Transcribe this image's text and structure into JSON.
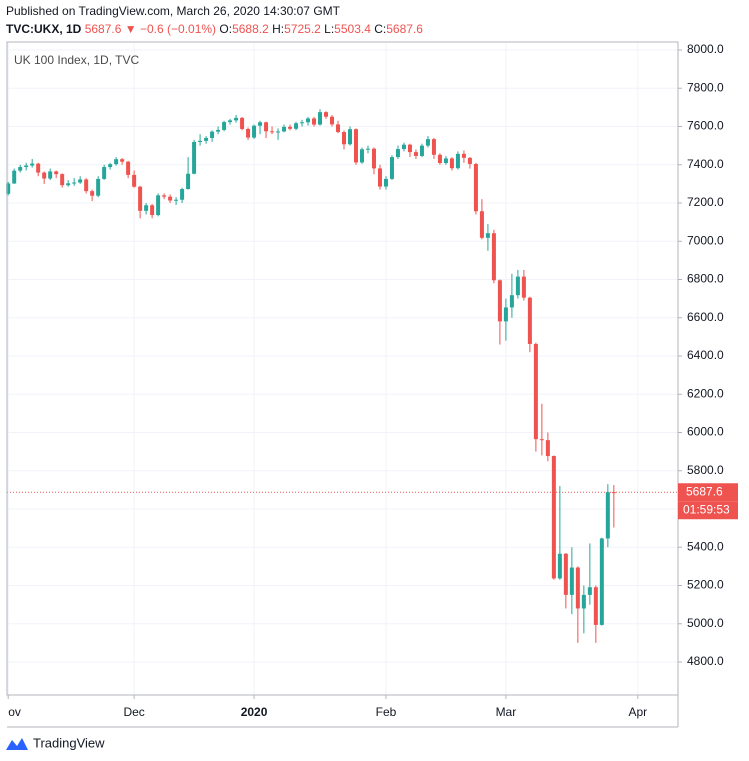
{
  "header": {
    "published": "Published on TradingView.com, March 26, 2020 14:30:07 GMT",
    "symbol": "TVC:UKX, 1D",
    "change_arrow": "▼",
    "change": {
      "value": -0.6,
      "label": "−0.6"
    },
    "change_pct": {
      "value": -0.01,
      "label": "(−0.01%)"
    },
    "ohlc_labels": [
      "O:",
      "H:",
      "L:",
      "C:"
    ]
  },
  "chart_data": {
    "type": "candlestick",
    "title": "UK 100 Index, 1D, TVC",
    "up_color": "#26a69a",
    "down_color": "#ef5350",
    "grid": true,
    "countdown": "01:59:53",
    "ylim": [
      4627.5,
      8041.8
    ],
    "yticks": [
      {
        "value": 4800,
        "label": "4800.0"
      },
      {
        "value": 5000,
        "label": "5000.0"
      },
      {
        "value": 5200,
        "label": "5200.0"
      },
      {
        "value": 5400,
        "label": "5400.0"
      },
      {
        "value": 5600,
        "label": "5600.0"
      },
      {
        "value": 5800,
        "label": "5800.0"
      },
      {
        "value": 6000,
        "label": "6000.0"
      },
      {
        "value": 6200,
        "label": "6200.0"
      },
      {
        "value": 6400,
        "label": "6400.0"
      },
      {
        "value": 6600,
        "label": "6600.0"
      },
      {
        "value": 6800,
        "label": "6800.0"
      },
      {
        "value": 7000,
        "label": "7000.0"
      },
      {
        "value": 7200,
        "label": "7200.0"
      },
      {
        "value": 7400,
        "label": "7400.0"
      },
      {
        "value": 7600,
        "label": "7600.0"
      },
      {
        "value": 7800,
        "label": "7800.0"
      },
      {
        "value": 8000,
        "label": "8000.0"
      }
    ],
    "xlim": [
      -0.2,
      111.7
    ],
    "xticks": [
      {
        "value": 0,
        "label": "ov"
      },
      {
        "value": 21,
        "label": "Dec"
      },
      {
        "value": 41,
        "label": "2020"
      },
      {
        "value": 63,
        "label": "Feb"
      },
      {
        "value": 83,
        "label": "Mar"
      },
      {
        "value": 105,
        "label": "Apr"
      }
    ],
    "candles": [
      [
        7248,
        7310,
        7240,
        7302
      ],
      [
        7302,
        7380,
        7300,
        7369
      ],
      [
        7369,
        7400,
        7360,
        7388
      ],
      [
        7388,
        7410,
        7370,
        7396
      ],
      [
        7396,
        7430,
        7385,
        7406
      ],
      [
        7406,
        7410,
        7340,
        7359
      ],
      [
        7359,
        7365,
        7300,
        7328
      ],
      [
        7328,
        7380,
        7320,
        7365
      ],
      [
        7365,
        7370,
        7330,
        7351
      ],
      [
        7351,
        7355,
        7280,
        7293
      ],
      [
        7293,
        7320,
        7285,
        7303
      ],
      [
        7303,
        7330,
        7290,
        7307
      ],
      [
        7307,
        7340,
        7300,
        7323
      ],
      [
        7323,
        7330,
        7250,
        7262
      ],
      [
        7262,
        7270,
        7210,
        7238
      ],
      [
        7238,
        7340,
        7230,
        7326
      ],
      [
        7326,
        7400,
        7320,
        7388
      ],
      [
        7388,
        7410,
        7375,
        7403
      ],
      [
        7403,
        7440,
        7395,
        7429
      ],
      [
        7429,
        7435,
        7400,
        7416
      ],
      [
        7416,
        7420,
        7330,
        7347
      ],
      [
        7347,
        7370,
        7280,
        7285
      ],
      [
        7285,
        7290,
        7120,
        7159
      ],
      [
        7159,
        7200,
        7140,
        7188
      ],
      [
        7188,
        7195,
        7120,
        7137
      ],
      [
        7137,
        7250,
        7130,
        7240
      ],
      [
        7240,
        7250,
        7220,
        7233
      ],
      [
        7233,
        7245,
        7200,
        7213
      ],
      [
        7213,
        7230,
        7190,
        7217
      ],
      [
        7217,
        7280,
        7200,
        7273
      ],
      [
        7273,
        7440,
        7270,
        7353
      ],
      [
        7353,
        7530,
        7350,
        7519
      ],
      [
        7519,
        7560,
        7500,
        7525
      ],
      [
        7525,
        7550,
        7510,
        7540
      ],
      [
        7540,
        7580,
        7520,
        7573
      ],
      [
        7573,
        7600,
        7560,
        7582
      ],
      [
        7582,
        7630,
        7575,
        7623
      ],
      [
        7623,
        7640,
        7610,
        7632
      ],
      [
        7632,
        7660,
        7620,
        7645
      ],
      [
        7645,
        7650,
        7580,
        7587
      ],
      [
        7587,
        7595,
        7530,
        7542
      ],
      [
        7542,
        7610,
        7535,
        7604
      ],
      [
        7604,
        7630,
        7560,
        7622
      ],
      [
        7622,
        7625,
        7540,
        7575
      ],
      [
        7575,
        7600,
        7560,
        7573
      ],
      [
        7573,
        7590,
        7530,
        7574
      ],
      [
        7574,
        7610,
        7570,
        7598
      ],
      [
        7598,
        7610,
        7580,
        7588
      ],
      [
        7588,
        7625,
        7580,
        7617
      ],
      [
        7617,
        7635,
        7600,
        7622
      ],
      [
        7622,
        7650,
        7605,
        7642
      ],
      [
        7642,
        7650,
        7600,
        7610
      ],
      [
        7610,
        7690,
        7605,
        7675
      ],
      [
        7675,
        7680,
        7640,
        7651
      ],
      [
        7651,
        7660,
        7600,
        7611
      ],
      [
        7611,
        7630,
        7565,
        7571
      ],
      [
        7571,
        7580,
        7480,
        7507
      ],
      [
        7507,
        7600,
        7500,
        7586
      ],
      [
        7586,
        7590,
        7400,
        7412
      ],
      [
        7412,
        7490,
        7405,
        7481
      ],
      [
        7481,
        7500,
        7460,
        7484
      ],
      [
        7484,
        7490,
        7350,
        7381
      ],
      [
        7381,
        7400,
        7270,
        7286
      ],
      [
        7286,
        7340,
        7270,
        7326
      ],
      [
        7326,
        7450,
        7320,
        7440
      ],
      [
        7440,
        7500,
        7430,
        7482
      ],
      [
        7482,
        7515,
        7470,
        7505
      ],
      [
        7505,
        7510,
        7440,
        7466
      ],
      [
        7466,
        7480,
        7430,
        7446
      ],
      [
        7446,
        7510,
        7440,
        7500
      ],
      [
        7500,
        7550,
        7490,
        7534
      ],
      [
        7534,
        7540,
        7430,
        7452
      ],
      [
        7452,
        7460,
        7400,
        7409
      ],
      [
        7409,
        7445,
        7400,
        7433
      ],
      [
        7433,
        7440,
        7370,
        7382
      ],
      [
        7382,
        7470,
        7375,
        7457
      ],
      [
        7457,
        7475,
        7410,
        7436
      ],
      [
        7436,
        7440,
        7380,
        7404
      ],
      [
        7404,
        7410,
        7140,
        7157
      ],
      [
        7157,
        7220,
        7010,
        7018
      ],
      [
        7018,
        7090,
        6950,
        7042
      ],
      [
        7042,
        7060,
        6780,
        6796
      ],
      [
        6796,
        6800,
        6460,
        6581
      ],
      [
        6581,
        6700,
        6480,
        6654
      ],
      [
        6654,
        6830,
        6600,
        6718
      ],
      [
        6718,
        6850,
        6700,
        6815
      ],
      [
        6815,
        6850,
        6690,
        6705
      ],
      [
        6705,
        6710,
        6420,
        6463
      ],
      [
        6463,
        6470,
        5900,
        5965
      ],
      [
        5965,
        6150,
        5880,
        5960
      ],
      [
        5960,
        6000,
        5850,
        5877
      ],
      [
        5877,
        5880,
        5230,
        5237
      ],
      [
        5237,
        5720,
        5230,
        5366
      ],
      [
        5366,
        5370,
        5080,
        5151
      ],
      [
        5151,
        5400,
        5050,
        5294
      ],
      [
        5294,
        5300,
        4900,
        5080
      ],
      [
        5080,
        5200,
        4950,
        5151
      ],
      [
        5151,
        5420,
        5100,
        5191
      ],
      [
        5191,
        5200,
        4900,
        4994
      ],
      [
        4994,
        5450,
        4990,
        5446
      ],
      [
        5446,
        5730,
        5400,
        5688
      ],
      [
        5688.2,
        5725.2,
        5503.4,
        5687.6
      ]
    ]
  },
  "footer": {
    "brand": "TradingView"
  }
}
